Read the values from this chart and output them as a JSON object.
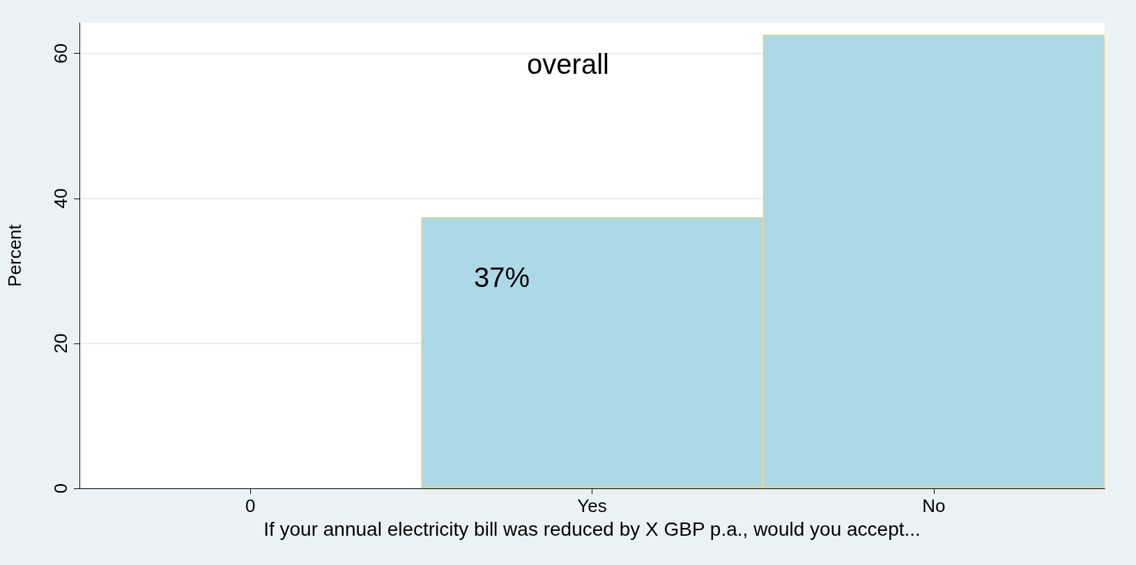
{
  "chart_data": {
    "type": "bar",
    "ylabel": "Percent",
    "xlabel": "If your annual electricity bill was reduced by X GBP p.a., would you accept...",
    "categories": [
      "0",
      "Yes",
      "No"
    ],
    "values": [
      null,
      37.4,
      62.6
    ],
    "color": "#add8e6",
    "ylim": [
      0,
      64.2
    ],
    "yticks": [
      0,
      20,
      40,
      60
    ],
    "grid": "y",
    "annotations": [
      "overall",
      "37%"
    ]
  }
}
